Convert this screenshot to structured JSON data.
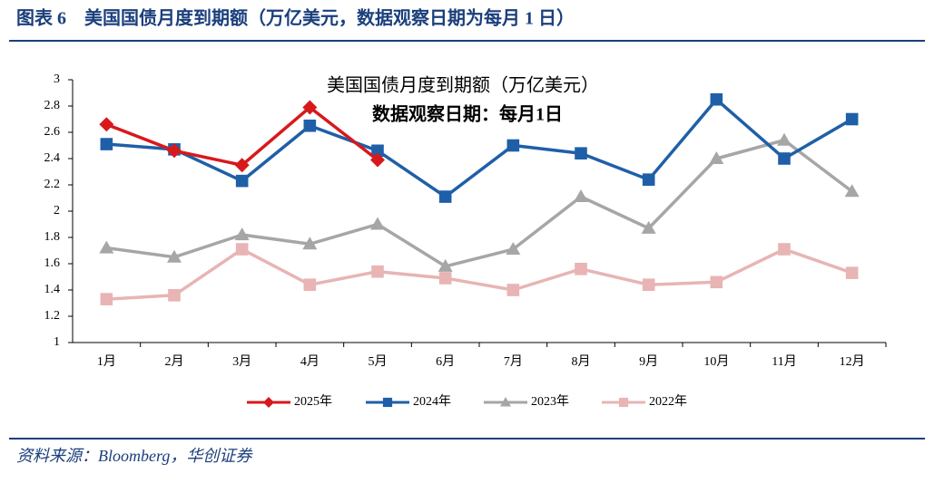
{
  "chart_data": {
    "type": "line",
    "title": "图表 6　美国国债月度到期额（万亿美元，数据观察日期为每月 1 日）",
    "annotations": [
      "美国国债月度到期额（万亿美元）",
      "数据观察日期：每月1日"
    ],
    "source": "资料来源：Bloomberg，华创证券",
    "categories": [
      "1月",
      "2月",
      "3月",
      "4月",
      "5月",
      "6月",
      "7月",
      "8月",
      "9月",
      "10月",
      "11月",
      "12月"
    ],
    "series": [
      {
        "name": "2025年",
        "color": "#d7191c",
        "marker": "diamond",
        "values": [
          2.66,
          2.46,
          2.35,
          2.79,
          2.39,
          null,
          null,
          null,
          null,
          null,
          null,
          null
        ]
      },
      {
        "name": "2024年",
        "color": "#1f5fa8",
        "marker": "square",
        "values": [
          2.51,
          2.47,
          2.23,
          2.65,
          2.46,
          2.11,
          2.5,
          2.44,
          2.24,
          2.85,
          2.4,
          2.7
        ]
      },
      {
        "name": "2023年",
        "color": "#a6a6a6",
        "marker": "triangle",
        "values": [
          1.72,
          1.65,
          1.82,
          1.75,
          1.9,
          1.58,
          1.71,
          2.11,
          1.87,
          2.4,
          2.54,
          2.15
        ]
      },
      {
        "name": "2022年",
        "color": "#e8b4b4",
        "marker": "square",
        "values": [
          1.33,
          1.36,
          1.71,
          1.44,
          1.54,
          1.49,
          1.4,
          1.56,
          1.44,
          1.46,
          1.71,
          1.53
        ]
      }
    ],
    "ylim": [
      1,
      3
    ],
    "yticks": [
      1,
      1.2,
      1.4,
      1.6,
      1.8,
      2,
      2.2,
      2.4,
      2.6,
      2.8,
      3
    ],
    "grid": false,
    "legend": "bottom"
  }
}
